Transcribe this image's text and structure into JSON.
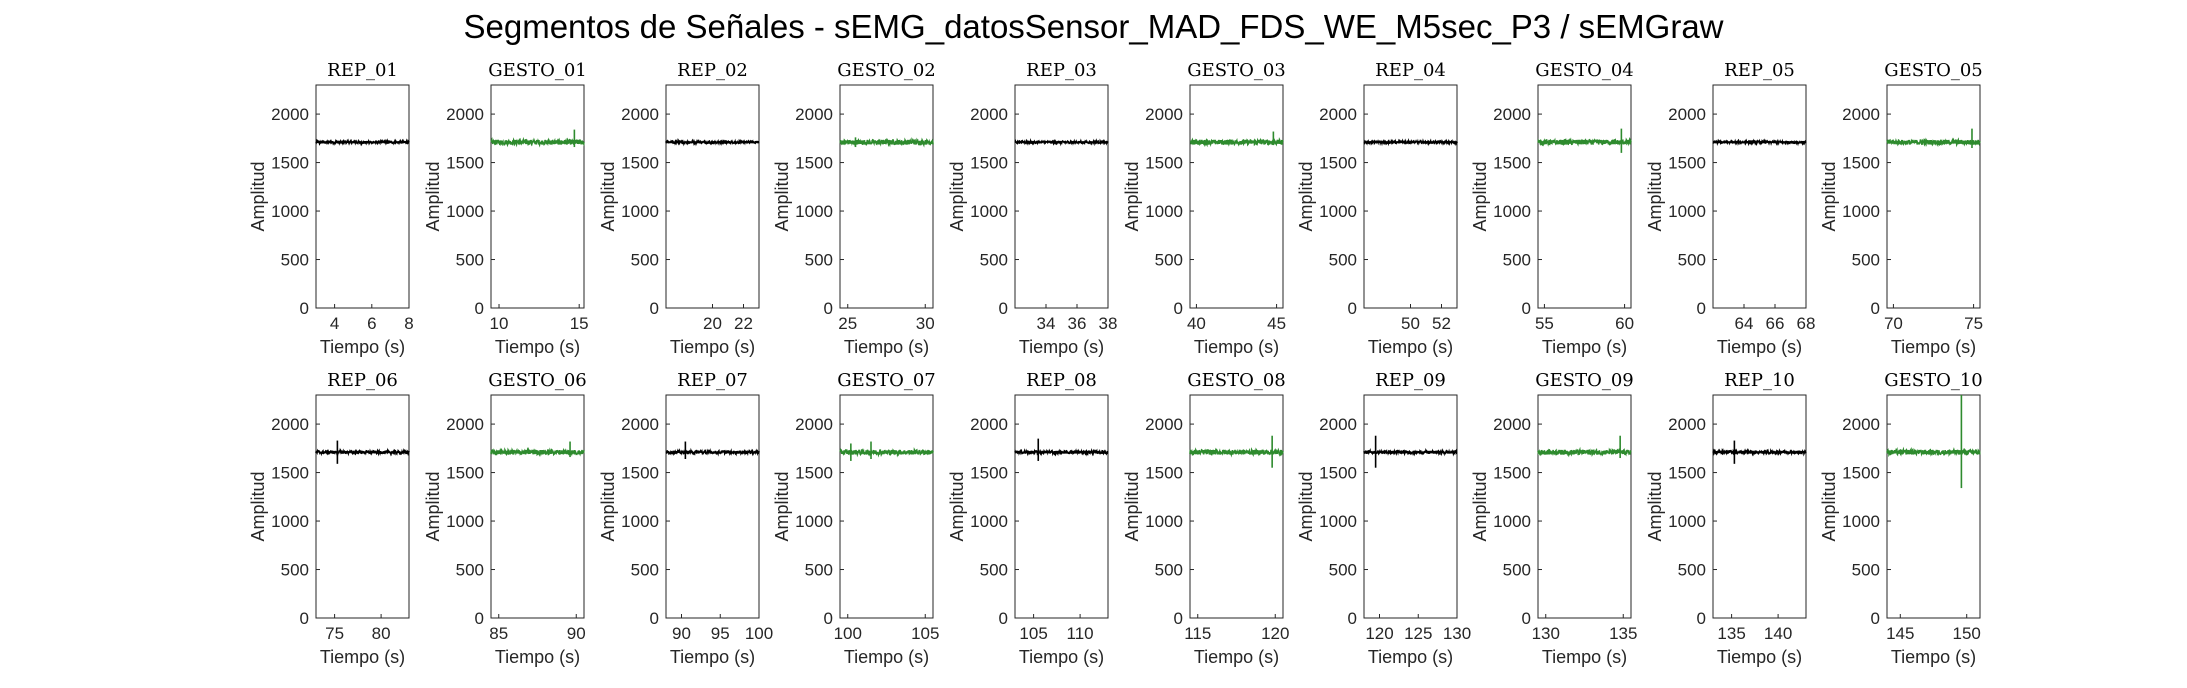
{
  "figure_title": "Segmentos de Señales - sEMG_datosSensor_MAD_FDS_WE_M5sec_P3 / sEMGraw",
  "colors": {
    "rep": "#000000",
    "gesto": "#2e8b2e",
    "axis": "#262626"
  },
  "chart_data": [
    {
      "type": "line",
      "title": "REP_01",
      "xlabel": "Tiempo (s)",
      "ylabel": "Amplitud",
      "xlim": [
        3,
        8
      ],
      "ylim": [
        0,
        2300
      ],
      "xticks": [
        4,
        6,
        8
      ],
      "yticks": [
        0,
        500,
        1000,
        1500,
        2000
      ],
      "series": [
        {
          "values": {
            "baseline": 1710,
            "noise": 12,
            "spikes": []
          }
        }
      ]
    },
    {
      "type": "line",
      "title": "GESTO_01",
      "xlabel": "Tiempo (s)",
      "ylabel": "Amplitud",
      "xlim": [
        9.5,
        15.3
      ],
      "ylim": [
        0,
        2300
      ],
      "xticks": [
        10,
        15
      ],
      "yticks": [
        0,
        500,
        1000,
        1500,
        2000
      ],
      "series": [
        {
          "values": {
            "baseline": 1710,
            "noise": 25,
            "spikes": [
              [
                14.7,
                1840,
                1660
              ]
            ]
          }
        }
      ]
    },
    {
      "type": "line",
      "title": "REP_02",
      "xlabel": "Tiempo (s)",
      "ylabel": "Amplitud",
      "xlim": [
        17,
        23
      ],
      "ylim": [
        0,
        2300
      ],
      "xticks": [
        20,
        22
      ],
      "yticks": [
        0,
        500,
        1000,
        1500,
        2000
      ],
      "series": [
        {
          "values": {
            "baseline": 1710,
            "noise": 12,
            "spikes": []
          }
        }
      ]
    },
    {
      "type": "line",
      "title": "GESTO_02",
      "xlabel": "Tiempo (s)",
      "ylabel": "Amplitud",
      "xlim": [
        24.5,
        30.5
      ],
      "ylim": [
        0,
        2300
      ],
      "xticks": [
        25,
        30
      ],
      "yticks": [
        0,
        500,
        1000,
        1500,
        2000
      ],
      "series": [
        {
          "values": {
            "baseline": 1710,
            "noise": 25,
            "spikes": [
              [
                25.5,
                1760,
                1660
              ]
            ]
          }
        }
      ]
    },
    {
      "type": "line",
      "title": "REP_03",
      "xlabel": "Tiempo (s)",
      "ylabel": "Amplitud",
      "xlim": [
        32,
        38
      ],
      "ylim": [
        0,
        2300
      ],
      "xticks": [
        34,
        36,
        38
      ],
      "yticks": [
        0,
        500,
        1000,
        1500,
        2000
      ],
      "series": [
        {
          "values": {
            "baseline": 1710,
            "noise": 12,
            "spikes": []
          }
        }
      ]
    },
    {
      "type": "line",
      "title": "GESTO_03",
      "xlabel": "Tiempo (s)",
      "ylabel": "Amplitud",
      "xlim": [
        39.6,
        45.4
      ],
      "ylim": [
        0,
        2300
      ],
      "xticks": [
        40,
        45
      ],
      "yticks": [
        0,
        500,
        1000,
        1500,
        2000
      ],
      "series": [
        {
          "values": {
            "baseline": 1710,
            "noise": 25,
            "spikes": [
              [
                44.8,
                1820,
                1680
              ]
            ]
          }
        }
      ]
    },
    {
      "type": "line",
      "title": "REP_04",
      "xlabel": "Tiempo (s)",
      "ylabel": "Amplitud",
      "xlim": [
        47,
        53
      ],
      "ylim": [
        0,
        2300
      ],
      "xticks": [
        50,
        52
      ],
      "yticks": [
        0,
        500,
        1000,
        1500,
        2000
      ],
      "series": [
        {
          "values": {
            "baseline": 1710,
            "noise": 12,
            "spikes": []
          }
        }
      ]
    },
    {
      "type": "line",
      "title": "GESTO_04",
      "xlabel": "Tiempo (s)",
      "ylabel": "Amplitud",
      "xlim": [
        54.6,
        60.4
      ],
      "ylim": [
        0,
        2300
      ],
      "xticks": [
        55,
        60
      ],
      "yticks": [
        0,
        500,
        1000,
        1500,
        2000
      ],
      "series": [
        {
          "values": {
            "baseline": 1710,
            "noise": 25,
            "spikes": [
              [
                59.8,
                1850,
                1600
              ]
            ]
          }
        }
      ]
    },
    {
      "type": "line",
      "title": "REP_05",
      "xlabel": "Tiempo (s)",
      "ylabel": "Amplitud",
      "xlim": [
        62,
        68
      ],
      "ylim": [
        0,
        2300
      ],
      "xticks": [
        64,
        66,
        68
      ],
      "yticks": [
        0,
        500,
        1000,
        1500,
        2000
      ],
      "series": [
        {
          "values": {
            "baseline": 1710,
            "noise": 12,
            "spikes": []
          }
        }
      ]
    },
    {
      "type": "line",
      "title": "GESTO_05",
      "xlabel": "Tiempo (s)",
      "ylabel": "Amplitud",
      "xlim": [
        69.6,
        75.4
      ],
      "ylim": [
        0,
        2300
      ],
      "xticks": [
        70,
        75
      ],
      "yticks": [
        0,
        500,
        1000,
        1500,
        2000
      ],
      "series": [
        {
          "values": {
            "baseline": 1710,
            "noise": 25,
            "spikes": [
              [
                74.9,
                1850,
                1650
              ]
            ]
          }
        }
      ]
    },
    {
      "type": "line",
      "title": "REP_06",
      "xlabel": "Tiempo (s)",
      "ylabel": "Amplitud",
      "xlim": [
        73,
        83
      ],
      "ylim": [
        0,
        2300
      ],
      "xticks": [
        75,
        80
      ],
      "yticks": [
        0,
        500,
        1000,
        1500,
        2000
      ],
      "series": [
        {
          "values": {
            "baseline": 1710,
            "noise": 15,
            "spikes": [
              [
                75.3,
                1830,
                1590
              ]
            ]
          }
        }
      ]
    },
    {
      "type": "line",
      "title": "GESTO_06",
      "xlabel": "Tiempo (s)",
      "ylabel": "Amplitud",
      "xlim": [
        84.5,
        90.5
      ],
      "ylim": [
        0,
        2300
      ],
      "xticks": [
        85,
        90
      ],
      "yticks": [
        0,
        500,
        1000,
        1500,
        2000
      ],
      "series": [
        {
          "values": {
            "baseline": 1710,
            "noise": 25,
            "spikes": [
              [
                89.6,
                1820,
                1660
              ]
            ]
          }
        }
      ]
    },
    {
      "type": "line",
      "title": "REP_07",
      "xlabel": "Tiempo (s)",
      "ylabel": "Amplitud",
      "xlim": [
        88,
        100
      ],
      "ylim": [
        0,
        2300
      ],
      "xticks": [
        90,
        95,
        100
      ],
      "yticks": [
        0,
        500,
        1000,
        1500,
        2000
      ],
      "series": [
        {
          "values": {
            "baseline": 1710,
            "noise": 15,
            "spikes": [
              [
                90.5,
                1820,
                1640
              ]
            ]
          }
        }
      ]
    },
    {
      "type": "line",
      "title": "GESTO_07",
      "xlabel": "Tiempo (s)",
      "ylabel": "Amplitud",
      "xlim": [
        99.5,
        105.5
      ],
      "ylim": [
        0,
        2300
      ],
      "xticks": [
        100,
        105
      ],
      "yticks": [
        0,
        500,
        1000,
        1500,
        2000
      ],
      "series": [
        {
          "values": {
            "baseline": 1710,
            "noise": 25,
            "spikes": [
              [
                100.2,
                1800,
                1620
              ],
              [
                101.5,
                1820,
                1640
              ]
            ]
          }
        }
      ]
    },
    {
      "type": "line",
      "title": "REP_08",
      "xlabel": "Tiempo (s)",
      "ylabel": "Amplitud",
      "xlim": [
        103,
        113
      ],
      "ylim": [
        0,
        2300
      ],
      "xticks": [
        105,
        110
      ],
      "yticks": [
        0,
        500,
        1000,
        1500,
        2000
      ],
      "series": [
        {
          "values": {
            "baseline": 1710,
            "noise": 15,
            "spikes": [
              [
                105.5,
                1850,
                1620
              ]
            ]
          }
        }
      ]
    },
    {
      "type": "line",
      "title": "GESTO_08",
      "xlabel": "Tiempo (s)",
      "ylabel": "Amplitud",
      "xlim": [
        114.5,
        120.5
      ],
      "ylim": [
        0,
        2300
      ],
      "xticks": [
        115,
        120
      ],
      "yticks": [
        0,
        500,
        1000,
        1500,
        2000
      ],
      "series": [
        {
          "values": {
            "baseline": 1710,
            "noise": 25,
            "spikes": [
              [
                119.8,
                1880,
                1550
              ]
            ]
          }
        }
      ]
    },
    {
      "type": "line",
      "title": "REP_09",
      "xlabel": "Tiempo (s)",
      "ylabel": "Amplitud",
      "xlim": [
        118,
        130
      ],
      "ylim": [
        0,
        2300
      ],
      "xticks": [
        120,
        125,
        130
      ],
      "yticks": [
        0,
        500,
        1000,
        1500,
        2000
      ],
      "series": [
        {
          "values": {
            "baseline": 1710,
            "noise": 15,
            "spikes": [
              [
                119.5,
                1880,
                1550
              ]
            ]
          }
        }
      ]
    },
    {
      "type": "line",
      "title": "GESTO_09",
      "xlabel": "Tiempo (s)",
      "ylabel": "Amplitud",
      "xlim": [
        129.5,
        135.5
      ],
      "ylim": [
        0,
        2300
      ],
      "xticks": [
        130,
        135
      ],
      "yticks": [
        0,
        500,
        1000,
        1500,
        2000
      ],
      "series": [
        {
          "values": {
            "baseline": 1710,
            "noise": 25,
            "spikes": [
              [
                134.8,
                1880,
                1650
              ]
            ]
          }
        }
      ]
    },
    {
      "type": "line",
      "title": "REP_10",
      "xlabel": "Tiempo (s)",
      "ylabel": "Amplitud",
      "xlim": [
        133,
        143
      ],
      "ylim": [
        0,
        2300
      ],
      "xticks": [
        135,
        140
      ],
      "yticks": [
        0,
        500,
        1000,
        1500,
        2000
      ],
      "series": [
        {
          "values": {
            "baseline": 1710,
            "noise": 15,
            "spikes": [
              [
                135.3,
                1830,
                1590
              ]
            ]
          }
        }
      ]
    },
    {
      "type": "line",
      "title": "GESTO_10",
      "xlabel": "Tiempo (s)",
      "ylabel": "Amplitud",
      "xlim": [
        144,
        151
      ],
      "ylim": [
        0,
        2300
      ],
      "xticks": [
        145,
        150
      ],
      "yticks": [
        0,
        500,
        1000,
        1500,
        2000
      ],
      "series": [
        {
          "values": {
            "baseline": 1710,
            "noise": 25,
            "spikes": [
              [
                149.6,
                2300,
                1340
              ]
            ]
          }
        }
      ]
    }
  ]
}
